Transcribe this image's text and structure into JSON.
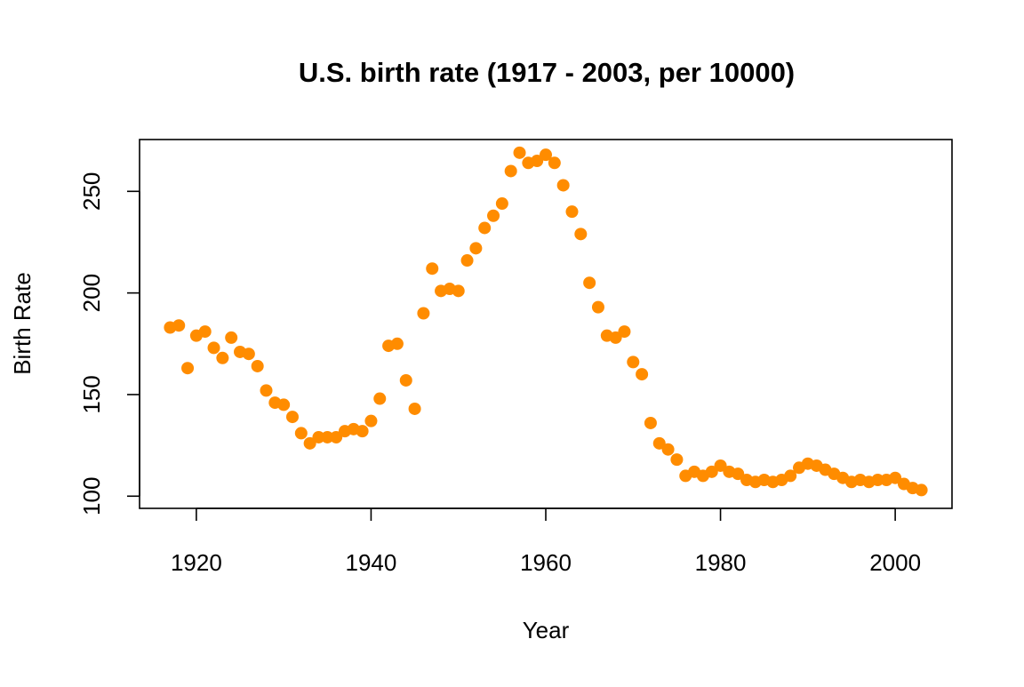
{
  "chart_data": {
    "type": "scatter",
    "title": "U.S. birth rate (1917 - 2003, per 10000)",
    "xlabel": "Year",
    "ylabel": "Birth Rate",
    "xlim": [
      1913.5,
      2006.5
    ],
    "ylim": [
      94,
      275.5
    ],
    "x_ticks": [
      1920,
      1940,
      1960,
      1980,
      2000
    ],
    "y_ticks": [
      100,
      150,
      200,
      250
    ],
    "grid": false,
    "legend": "none",
    "marker_color": "#FF8C00",
    "series": [
      {
        "x": [
          1917,
          1918,
          1919,
          1920,
          1921,
          1922,
          1923,
          1924,
          1925,
          1926,
          1927,
          1928,
          1929,
          1930,
          1931,
          1932,
          1933,
          1934,
          1935,
          1936,
          1937,
          1938,
          1939,
          1940,
          1941,
          1942,
          1943,
          1944,
          1945,
          1946,
          1947,
          1948,
          1949,
          1950,
          1951,
          1952,
          1953,
          1954,
          1955,
          1956,
          1957,
          1958,
          1959,
          1960,
          1961,
          1962,
          1963,
          1964,
          1965,
          1966,
          1967,
          1968,
          1969,
          1970,
          1971,
          1972,
          1973,
          1974,
          1975,
          1976,
          1977,
          1978,
          1979,
          1980,
          1981,
          1982,
          1983,
          1984,
          1985,
          1986,
          1987,
          1988,
          1989,
          1990,
          1991,
          1992,
          1993,
          1994,
          1995,
          1996,
          1997,
          1998,
          1999,
          2000,
          2001,
          2002,
          2003
        ],
        "y": [
          183,
          184,
          163,
          179,
          181,
          173,
          168,
          178,
          171,
          170,
          164,
          152,
          146,
          145,
          139,
          131,
          126,
          129,
          129,
          129,
          132,
          133,
          132,
          137,
          148,
          174,
          175,
          157,
          143,
          190,
          212,
          201,
          202,
          201,
          216,
          222,
          232,
          238,
          244,
          260,
          269,
          264,
          265,
          268,
          264,
          253,
          240,
          229,
          205,
          193,
          179,
          178,
          181,
          166,
          160,
          136,
          126,
          123,
          118,
          110,
          112,
          110,
          112,
          115,
          112,
          111,
          108,
          107,
          108,
          107,
          108,
          110,
          114,
          116,
          115,
          113,
          111,
          109,
          107,
          108,
          107,
          108,
          108,
          109,
          106,
          104,
          103
        ]
      }
    ]
  }
}
